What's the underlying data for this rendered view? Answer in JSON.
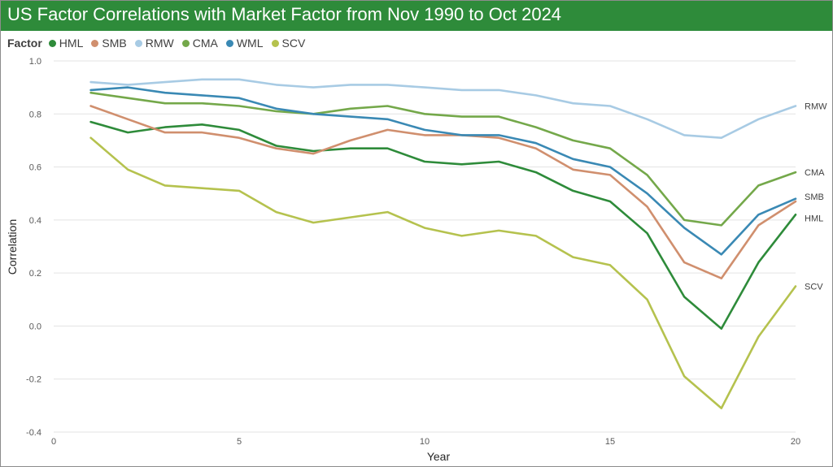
{
  "chart_data": {
    "type": "line",
    "title": "US Factor Correlations with Market Factor from Nov 1990 to Oct 2024",
    "legend_title": "Factor",
    "xlabel": "Year",
    "ylabel": "Correlation",
    "xlim": [
      0,
      20
    ],
    "ylim": [
      -0.4,
      1.0
    ],
    "x_ticks": [
      0,
      5,
      10,
      15,
      20
    ],
    "y_ticks": [
      -0.4,
      -0.2,
      0.0,
      0.2,
      0.4,
      0.6,
      0.8,
      1.0
    ],
    "y_tick_labels": [
      "-0.4",
      "-0.2",
      "0.0",
      "0.2",
      "0.4",
      "0.6",
      "0.8",
      "1.0"
    ],
    "grid": "horizontal",
    "legend_position": "top-left",
    "x": [
      1,
      2,
      3,
      4,
      5,
      6,
      7,
      8,
      9,
      10,
      11,
      12,
      13,
      14,
      15,
      16,
      17,
      18,
      19,
      20
    ],
    "series": [
      {
        "name": "HML",
        "color": "#2e8b3a",
        "end_label": "HML",
        "values": [
          0.77,
          0.73,
          0.75,
          0.76,
          0.74,
          0.68,
          0.66,
          0.67,
          0.67,
          0.62,
          0.61,
          0.62,
          0.58,
          0.51,
          0.47,
          0.35,
          0.11,
          -0.01,
          0.24,
          0.42
        ]
      },
      {
        "name": "SMB",
        "color": "#d08f6e",
        "end_label": "SMB",
        "values": [
          0.83,
          0.78,
          0.73,
          0.73,
          0.71,
          0.67,
          0.65,
          0.7,
          0.74,
          0.72,
          0.72,
          0.71,
          0.67,
          0.59,
          0.57,
          0.45,
          0.24,
          0.18,
          0.38,
          0.47
        ]
      },
      {
        "name": "RMW",
        "color": "#a8cbe4",
        "end_label": "RMW",
        "values": [
          0.92,
          0.91,
          0.92,
          0.93,
          0.93,
          0.91,
          0.9,
          0.91,
          0.91,
          0.9,
          0.89,
          0.89,
          0.87,
          0.84,
          0.83,
          0.78,
          0.72,
          0.71,
          0.78,
          0.83
        ]
      },
      {
        "name": "CMA",
        "color": "#74a84a",
        "end_label": "CMA",
        "values": [
          0.88,
          0.86,
          0.84,
          0.84,
          0.83,
          0.81,
          0.8,
          0.82,
          0.83,
          0.8,
          0.79,
          0.79,
          0.75,
          0.7,
          0.67,
          0.57,
          0.4,
          0.38,
          0.53,
          0.58
        ]
      },
      {
        "name": "WML",
        "color": "#3a89b4",
        "end_label": "",
        "values": [
          0.89,
          0.9,
          0.88,
          0.87,
          0.86,
          0.82,
          0.8,
          0.79,
          0.78,
          0.74,
          0.72,
          0.72,
          0.69,
          0.63,
          0.6,
          0.5,
          0.37,
          0.27,
          0.42,
          0.48
        ]
      },
      {
        "name": "SCV",
        "color": "#b5c24e",
        "end_label": "SCV",
        "values": [
          0.71,
          0.59,
          0.53,
          0.52,
          0.51,
          0.43,
          0.39,
          0.41,
          0.43,
          0.37,
          0.34,
          0.36,
          0.34,
          0.26,
          0.23,
          0.1,
          -0.19,
          -0.31,
          -0.04,
          0.15
        ]
      }
    ]
  }
}
